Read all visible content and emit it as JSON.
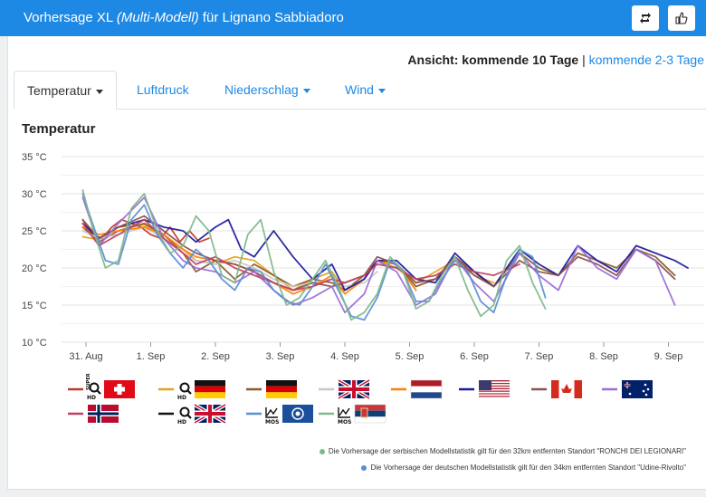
{
  "header": {
    "title_prefix": "Vorhersage XL ",
    "title_em": "(Multi-Modell)",
    "title_suffix": " für Lignano Sabbiadoro",
    "share_icon": "repost-icon",
    "like_icon": "thumbs-up-icon"
  },
  "view": {
    "label": "Ansicht: kommende 10 Tage",
    "separator": " | ",
    "alt_link": "kommende 2-3 Tage"
  },
  "tabs": [
    {
      "label": "Temperatur",
      "caret": true,
      "active": true
    },
    {
      "label": "Luftdruck",
      "caret": false,
      "active": false
    },
    {
      "label": "Niederschlag",
      "caret": true,
      "active": false
    },
    {
      "label": "Wind",
      "caret": true,
      "active": false
    }
  ],
  "chart_data": {
    "type": "line",
    "title": "Temperatur",
    "ylim": [
      10,
      35
    ],
    "yticks": [
      "10 °C",
      "15 °C",
      "20 °C",
      "25 °C",
      "30 °C",
      "35 °C"
    ],
    "xticks": [
      "31. Aug",
      "1. Sep",
      "2. Sep",
      "3. Sep",
      "4. Sep",
      "5. Sep",
      "6. Sep",
      "7. Sep",
      "8. Sep",
      "9. Sep"
    ],
    "x_unit": "days after 31. Aug",
    "grid": true,
    "series": [
      {
        "color": "#c0392b",
        "label": "SUPER HD",
        "flag": "switzerland",
        "x": [
          -0.05,
          0.1,
          0.25,
          0.4,
          0.55,
          0.7,
          0.85,
          1.0,
          1.15,
          1.3,
          1.45,
          1.6,
          1.75,
          1.9
        ],
        "y": [
          26.5,
          24.5,
          24.0,
          25.5,
          26.5,
          26.0,
          25.5,
          24.5,
          24.0,
          25.5,
          23.5,
          25.0,
          23.5,
          24.0
        ]
      },
      {
        "color": "#e6a21b",
        "label": "HD",
        "flag": "germany",
        "x": [
          -0.05,
          0.2,
          0.5,
          0.9,
          1.2,
          1.5,
          1.7,
          2.0,
          2.3,
          2.6,
          2.9,
          3.2,
          3.5,
          3.8,
          4.0,
          4.3,
          4.5,
          4.8,
          5.1,
          5.4,
          5.7,
          6.0,
          6.3
        ],
        "y": [
          24.2,
          23.8,
          25.5,
          25.8,
          24.5,
          22.5,
          21.0,
          20.5,
          21.5,
          21.0,
          19.0,
          17.0,
          18.5,
          19.5,
          17.0,
          18.5,
          21.0,
          20.0,
          18.0,
          19.5,
          21.0,
          19.0,
          18.0
        ]
      },
      {
        "color": "#8b5a2b",
        "label": "",
        "flag": "germany",
        "x": [
          -0.05,
          0.2,
          0.5,
          0.9,
          1.2,
          1.5,
          1.7,
          2.0,
          2.3,
          2.6,
          2.9,
          3.2,
          3.5,
          3.8,
          4.0,
          4.3,
          4.5,
          4.8,
          5.1,
          5.4,
          5.7,
          6.0,
          6.3,
          6.7,
          7.0,
          7.3,
          7.6,
          7.9,
          8.2,
          8.5,
          8.8,
          9.1
        ],
        "y": [
          25.5,
          23.5,
          25.0,
          26.0,
          24.5,
          22.0,
          19.5,
          21.0,
          18.5,
          20.5,
          19.0,
          17.5,
          18.5,
          18.0,
          17.0,
          19.0,
          21.0,
          20.5,
          17.5,
          18.5,
          21.5,
          19.5,
          17.5,
          22.0,
          20.0,
          19.0,
          22.0,
          21.0,
          20.0,
          22.5,
          21.5,
          19.0
        ]
      },
      {
        "color": "#c8c8c8",
        "label": "",
        "flag": "uk",
        "x": [
          -0.05,
          0.2,
          0.5,
          0.9,
          1.2,
          1.5,
          1.7,
          2.0,
          2.3,
          2.6,
          2.9,
          3.2,
          3.5,
          3.8,
          4.0,
          4.3,
          4.5
        ],
        "y": [
          25.0,
          24.0,
          24.5,
          25.5,
          24.0,
          22.0,
          21.0,
          20.5,
          21.0,
          20.0,
          18.5,
          17.5,
          18.0,
          18.5,
          17.5,
          18.0,
          19.5
        ]
      },
      {
        "color": "#ff7f00",
        "label": "",
        "flag": "netherlands",
        "x": [
          -0.05,
          0.2,
          0.5,
          0.9,
          1.2,
          1.5,
          1.7,
          2.0,
          2.3,
          2.6,
          2.9,
          3.2,
          3.5,
          3.8,
          4.0,
          4.3,
          4.5,
          4.8,
          5.1
        ],
        "y": [
          25.5,
          24.5,
          25.0,
          25.5,
          24.5,
          22.5,
          21.5,
          21.0,
          20.5,
          19.5,
          18.0,
          16.5,
          17.5,
          19.0,
          16.5,
          18.5,
          21.0,
          20.5,
          17.0
        ]
      },
      {
        "color": "#1a1a9c",
        "label": "",
        "flag": "usa",
        "x": [
          -0.05,
          0.2,
          0.5,
          0.9,
          1.2,
          1.5,
          1.7,
          2.0,
          2.2,
          2.4,
          2.6,
          2.9,
          3.2,
          3.5,
          3.8,
          4.0,
          4.3,
          4.5,
          4.8,
          5.1,
          5.4,
          5.7,
          6.0,
          6.3,
          6.7,
          7.0,
          7.3,
          7.6,
          7.9,
          8.2,
          8.5,
          8.8,
          9.1,
          9.3
        ],
        "y": [
          26.0,
          24.0,
          25.5,
          26.5,
          25.5,
          25.0,
          23.5,
          25.5,
          26.5,
          22.5,
          21.5,
          25.0,
          21.5,
          18.5,
          20.5,
          17.0,
          18.5,
          21.0,
          21.0,
          18.5,
          18.0,
          22.0,
          19.5,
          17.5,
          22.5,
          20.5,
          19.0,
          23.0,
          21.0,
          19.5,
          23.0,
          22.0,
          21.0,
          20.0
        ]
      },
      {
        "color": "#8b5050",
        "label": "",
        "flag": "canada",
        "x": [
          -0.05,
          0.2,
          0.5,
          0.9,
          1.2,
          1.5,
          1.7,
          2.0,
          2.3,
          2.6,
          2.9,
          3.2,
          3.5,
          3.8,
          4.0,
          4.3,
          4.5,
          4.8,
          5.1,
          5.4,
          5.7,
          6.0,
          6.3,
          6.7,
          7.0,
          7.3,
          7.6,
          7.9,
          8.2,
          8.5,
          8.8,
          9.1
        ],
        "y": [
          26.5,
          24.0,
          25.5,
          27.0,
          25.0,
          23.0,
          22.0,
          21.0,
          20.5,
          19.5,
          18.0,
          17.0,
          18.0,
          17.5,
          18.0,
          19.0,
          21.5,
          20.5,
          18.0,
          18.5,
          21.5,
          19.0,
          17.5,
          21.0,
          19.5,
          19.0,
          21.5,
          20.5,
          19.0,
          22.5,
          21.0,
          18.5
        ]
      },
      {
        "color": "#9b6bd8",
        "label": "",
        "flag": "australia",
        "x": [
          -0.05,
          0.2,
          0.5,
          0.9,
          1.2,
          1.5,
          1.7,
          2.0,
          2.3,
          2.6,
          2.9,
          3.2,
          3.5,
          3.8,
          4.0,
          4.3,
          4.5,
          4.8,
          5.1,
          5.4,
          5.7,
          6.0,
          6.3,
          6.7,
          7.0,
          7.3,
          7.6,
          7.9,
          8.2,
          8.5,
          8.8,
          9.1
        ],
        "y": [
          29.5,
          23.0,
          26.0,
          29.5,
          24.0,
          21.0,
          20.0,
          19.5,
          18.0,
          19.5,
          17.0,
          15.0,
          16.0,
          17.5,
          14.0,
          16.5,
          21.0,
          19.5,
          15.0,
          16.5,
          21.5,
          18.0,
          15.5,
          22.0,
          19.0,
          17.0,
          23.0,
          20.0,
          18.5,
          22.5,
          21.0,
          15.0
        ]
      },
      {
        "color": "#c04060",
        "label": "",
        "flag": "norway",
        "x": [
          -0.05,
          0.2,
          0.5,
          0.9,
          1.2,
          1.5,
          1.7,
          2.0,
          2.3,
          2.6,
          2.9,
          3.2,
          3.5,
          3.8,
          4.0,
          4.3,
          4.5,
          4.8,
          5.1,
          5.4,
          5.7,
          6.0,
          6.3,
          6.7
        ],
        "y": [
          26.0,
          23.0,
          24.5,
          26.5,
          24.0,
          22.0,
          20.5,
          21.5,
          20.0,
          19.0,
          18.0,
          17.0,
          17.5,
          18.5,
          18.0,
          19.0,
          20.5,
          20.0,
          18.5,
          19.0,
          20.5,
          19.5,
          19.0,
          20.5
        ]
      },
      {
        "color": "#111111",
        "label": "HD",
        "flag": "uk",
        "x": [],
        "y": []
      },
      {
        "color": "#5a8ed6",
        "label": "MOS",
        "flag": "germany-dwd",
        "x": [
          -0.05,
          0.1,
          0.3,
          0.5,
          0.7,
          0.9,
          1.1,
          1.3,
          1.5,
          1.7,
          1.9,
          2.1,
          2.3,
          2.5,
          2.7,
          2.9,
          3.1,
          3.3,
          3.5,
          3.7,
          3.9,
          4.1,
          4.3,
          4.5,
          4.7,
          4.9,
          5.1,
          5.3,
          5.5,
          5.7,
          5.9,
          6.1,
          6.3,
          6.5,
          6.7,
          6.9,
          7.1
        ],
        "y": [
          30.0,
          26.0,
          21.0,
          20.5,
          26.5,
          28.5,
          24.5,
          22.0,
          20.0,
          22.5,
          21.0,
          18.5,
          17.0,
          20.0,
          19.5,
          17.0,
          15.5,
          15.0,
          17.5,
          20.5,
          17.0,
          13.5,
          13.0,
          16.0,
          21.0,
          19.5,
          15.5,
          15.5,
          18.5,
          21.0,
          19.5,
          15.5,
          14.0,
          19.0,
          22.5,
          21.5,
          16.0
        ]
      },
      {
        "color": "#7fb88a",
        "label": "MOS",
        "flag": "serbia",
        "x": [
          -0.05,
          0.1,
          0.3,
          0.5,
          0.7,
          0.9,
          1.1,
          1.3,
          1.5,
          1.7,
          1.9,
          2.1,
          2.3,
          2.5,
          2.7,
          2.9,
          3.1,
          3.3,
          3.5,
          3.7,
          3.9,
          4.1,
          4.3,
          4.5,
          4.7,
          4.9,
          5.1,
          5.3,
          5.5,
          5.7,
          5.9,
          6.1,
          6.3,
          6.5,
          6.7,
          6.9,
          7.1
        ],
        "y": [
          30.5,
          25.5,
          20.0,
          21.0,
          28.0,
          30.0,
          25.0,
          22.0,
          23.0,
          27.0,
          25.0,
          19.0,
          18.0,
          24.5,
          26.5,
          19.5,
          15.0,
          16.0,
          18.5,
          21.0,
          17.5,
          13.0,
          14.0,
          16.5,
          21.5,
          19.5,
          14.5,
          15.5,
          19.0,
          21.5,
          17.0,
          13.5,
          15.0,
          21.0,
          23.0,
          18.0,
          14.5
        ]
      }
    ]
  },
  "notes": [
    {
      "text": "Die Vorhersage der serbischen Modellstatistik gilt für den 32km entfernten Standort \"RONCHI DEI LEGIONARI\"",
      "color": "#7fb88a"
    },
    {
      "text": "Die Vorhersage der deutschen Modellstatistik gilt für den 34km entfernten Standort \"Udine-Rivolto\"",
      "color": "#5a8ed6"
    }
  ]
}
